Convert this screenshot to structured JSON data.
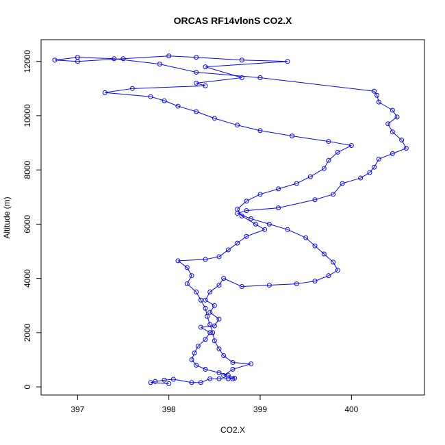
{
  "chart_data": {
    "type": "scatter",
    "title": "ORCAS RF14vlonS CO2.X",
    "xlabel": "CO2.X",
    "ylabel": "Altitude (m)",
    "xlim": [
      396.6,
      400.8
    ],
    "ylim": [
      -300,
      12800
    ],
    "xticks": [
      397,
      398,
      399,
      400
    ],
    "yticks": [
      0,
      2000,
      4000,
      6000,
      8000,
      10000,
      12000
    ],
    "point_style": "open-circle",
    "line_style": "connected",
    "colors": {
      "series": "#0000ff",
      "axis": "#000000",
      "background": "#ffffff"
    },
    "series": [
      {
        "values": [
          [
            398.0,
            120
          ],
          [
            397.8,
            160
          ],
          [
            397.85,
            200
          ],
          [
            397.95,
            250
          ],
          [
            398.05,
            280
          ],
          [
            398.25,
            160
          ],
          [
            398.35,
            160
          ],
          [
            398.45,
            300
          ],
          [
            398.55,
            300
          ],
          [
            398.65,
            300
          ],
          [
            398.72,
            320
          ],
          [
            398.65,
            430
          ],
          [
            398.55,
            520
          ],
          [
            398.4,
            650
          ],
          [
            398.3,
            800
          ],
          [
            398.25,
            1000
          ],
          [
            398.28,
            1250
          ],
          [
            398.32,
            1500
          ],
          [
            398.4,
            1750
          ],
          [
            398.45,
            2000
          ],
          [
            398.35,
            2200
          ],
          [
            398.5,
            2250
          ],
          [
            398.55,
            2500
          ],
          [
            398.45,
            2750
          ],
          [
            398.5,
            3000
          ],
          [
            398.4,
            3200
          ],
          [
            398.45,
            3500
          ],
          [
            398.55,
            3750
          ],
          [
            398.6,
            4000
          ],
          [
            398.8,
            3700
          ],
          [
            399.1,
            3750
          ],
          [
            399.4,
            3800
          ],
          [
            399.6,
            3900
          ],
          [
            399.75,
            4100
          ],
          [
            399.85,
            4300
          ],
          [
            399.8,
            4600
          ],
          [
            399.7,
            4900
          ],
          [
            399.6,
            5200
          ],
          [
            399.5,
            5500
          ],
          [
            399.3,
            5800
          ],
          [
            399.1,
            6000
          ],
          [
            398.9,
            6200
          ],
          [
            398.75,
            6400
          ],
          [
            398.85,
            6500
          ],
          [
            399.2,
            6600
          ],
          [
            399.6,
            6900
          ],
          [
            399.8,
            7100
          ],
          [
            399.9,
            7500
          ],
          [
            400.1,
            7700
          ],
          [
            400.2,
            7900
          ],
          [
            400.25,
            8100
          ],
          [
            400.3,
            8400
          ],
          [
            400.45,
            8600
          ],
          [
            400.6,
            8800
          ],
          [
            400.55,
            9100
          ],
          [
            400.45,
            9400
          ],
          [
            400.4,
            9700
          ],
          [
            400.5,
            9950
          ],
          [
            400.45,
            10200
          ],
          [
            400.3,
            10500
          ],
          [
            400.28,
            10750
          ],
          [
            400.25,
            10900
          ],
          [
            399.0,
            11400
          ],
          [
            398.3,
            11600
          ],
          [
            397.9,
            11900
          ],
          [
            397.4,
            12100
          ],
          [
            397.0,
            12150
          ],
          [
            396.75,
            12050
          ],
          [
            397.0,
            12000
          ],
          [
            397.5,
            12100
          ],
          [
            398.0,
            12200
          ],
          [
            398.3,
            12150
          ],
          [
            398.8,
            12050
          ],
          [
            399.3,
            12000
          ],
          [
            398.4,
            11800
          ],
          [
            398.8,
            11400
          ],
          [
            398.3,
            11200
          ],
          [
            398.4,
            11100
          ],
          [
            397.6,
            11000
          ],
          [
            397.3,
            10850
          ],
          [
            397.8,
            10700
          ],
          [
            397.95,
            10550
          ],
          [
            398.1,
            10350
          ],
          [
            398.3,
            10150
          ],
          [
            398.5,
            9900
          ],
          [
            398.75,
            9650
          ],
          [
            399.0,
            9450
          ],
          [
            399.35,
            9250
          ],
          [
            399.75,
            9050
          ],
          [
            400.0,
            8900
          ],
          [
            399.85,
            8650
          ],
          [
            399.75,
            8350
          ],
          [
            399.7,
            8050
          ],
          [
            399.55,
            7750
          ],
          [
            399.4,
            7500
          ],
          [
            399.2,
            7300
          ],
          [
            399.0,
            7100
          ],
          [
            398.85,
            6850
          ],
          [
            398.75,
            6550
          ],
          [
            398.8,
            6300
          ],
          [
            398.95,
            6000
          ],
          [
            399.05,
            5800
          ],
          [
            398.85,
            5550
          ],
          [
            398.75,
            5300
          ],
          [
            398.65,
            5050
          ],
          [
            398.55,
            4800
          ],
          [
            398.4,
            4700
          ],
          [
            398.1,
            4650
          ],
          [
            398.2,
            4400
          ],
          [
            398.25,
            4100
          ],
          [
            398.2,
            3800
          ],
          [
            398.3,
            3500
          ],
          [
            398.35,
            3200
          ],
          [
            398.4,
            2900
          ],
          [
            398.42,
            2600
          ],
          [
            398.45,
            2300
          ],
          [
            398.48,
            2000
          ],
          [
            398.5,
            1700
          ],
          [
            398.55,
            1400
          ],
          [
            398.6,
            1150
          ],
          [
            398.7,
            900
          ],
          [
            398.9,
            850
          ],
          [
            398.7,
            650
          ],
          [
            398.6,
            420
          ],
          [
            398.7,
            300
          ]
        ]
      }
    ]
  }
}
